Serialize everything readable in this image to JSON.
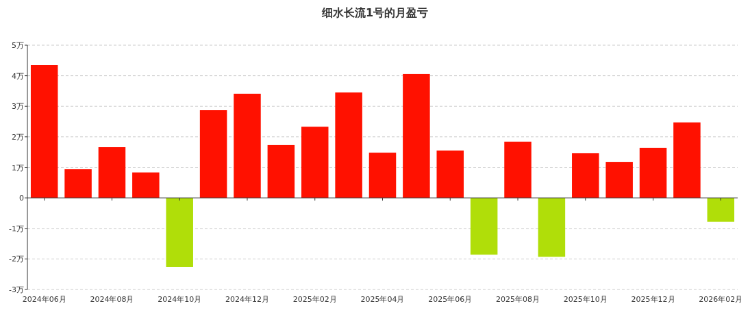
{
  "chart_data": {
    "type": "bar",
    "title": "细水长流1号的月盈亏",
    "categories": [
      "2024年06月",
      null,
      "2024年08月",
      null,
      "2024年10月",
      null,
      "2024年12月",
      null,
      "2025年02月",
      null,
      "2025年04月",
      null,
      "2025年06月",
      null,
      "2025年08月",
      null,
      "2025年10月",
      null,
      "2025年12月",
      null,
      "2026年02月"
    ],
    "values": [
      4.35,
      0.94,
      1.66,
      0.83,
      -2.26,
      2.87,
      3.41,
      1.73,
      2.33,
      3.45,
      1.48,
      4.06,
      1.55,
      -1.86,
      1.84,
      -1.93,
      1.46,
      1.17,
      1.64,
      2.47,
      -0.78
    ],
    "colors": [
      "#ff1100",
      "#ff1100",
      "#ff1100",
      "#ff1100",
      "#b0de09",
      "#ff1100",
      "#ff1100",
      "#ff1100",
      "#ff1100",
      "#ff1100",
      "#ff1100",
      "#ff1100",
      "#ff1100",
      "#b0de09",
      "#ff1100",
      "#b0de09",
      "#ff1100",
      "#ff1100",
      "#ff1100",
      "#ff1100",
      "#b0de09"
    ],
    "ylim": [
      -3,
      5
    ],
    "yticks": [
      {
        "value": -3,
        "label": "-3万"
      },
      {
        "value": -2,
        "label": "-2万"
      },
      {
        "value": -1,
        "label": "-1万"
      },
      0,
      {
        "value": 1,
        "label": "1万"
      },
      {
        "value": 2,
        "label": "2万"
      },
      {
        "value": 3,
        "label": "3万"
      },
      {
        "value": 4,
        "label": "4万"
      },
      {
        "value": 5,
        "label": "5万"
      }
    ],
    "grid": "y"
  }
}
